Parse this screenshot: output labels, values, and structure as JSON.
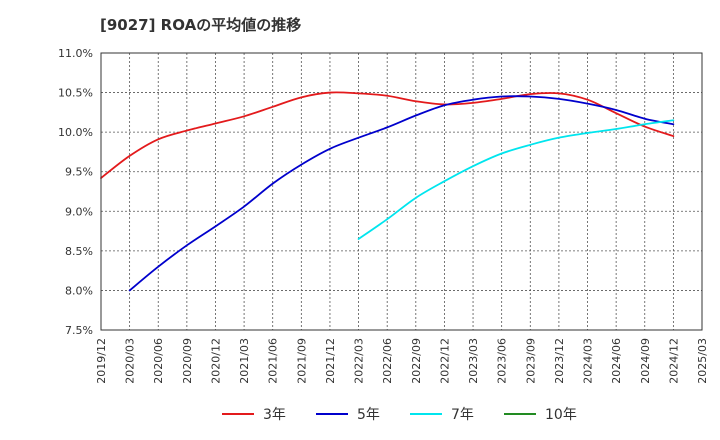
{
  "chart_data": {
    "type": "line",
    "title": "[9027]  ROAの平均値の推移",
    "xlabel": "",
    "ylabel": "",
    "x_ticks": [
      "2019/12",
      "2020/03",
      "2020/06",
      "2020/09",
      "2020/12",
      "2021/03",
      "2021/06",
      "2021/09",
      "2021/12",
      "2022/03",
      "2022/06",
      "2022/09",
      "2022/12",
      "2023/03",
      "2023/06",
      "2023/09",
      "2023/12",
      "2024/03",
      "2024/06",
      "2024/09",
      "2024/12",
      "2025/03"
    ],
    "y_ticks": [
      "7.5%",
      "8.0%",
      "8.5%",
      "9.0%",
      "9.5%",
      "10.0%",
      "10.5%",
      "11.0%"
    ],
    "ylim": [
      7.5,
      11.0
    ],
    "grid": true,
    "legend_position": "bottom",
    "series": [
      {
        "name": "3年",
        "color": "#e31a1c",
        "x": [
          "2019/12",
          "2020/03",
          "2020/06",
          "2020/09",
          "2020/12",
          "2021/03",
          "2021/06",
          "2021/09",
          "2021/12",
          "2022/03",
          "2022/06",
          "2022/09",
          "2022/12",
          "2023/03",
          "2023/06",
          "2023/09",
          "2023/12",
          "2024/03",
          "2024/06",
          "2024/09",
          "2024/12"
        ],
        "values": [
          9.42,
          9.7,
          9.91,
          10.02,
          10.11,
          10.2,
          10.32,
          10.44,
          10.5,
          10.49,
          10.46,
          10.39,
          10.35,
          10.37,
          10.42,
          10.48,
          10.49,
          10.41,
          10.24,
          10.07,
          9.95
        ]
      },
      {
        "name": "5年",
        "color": "#0000cc",
        "x": [
          "2020/03",
          "2020/06",
          "2020/09",
          "2020/12",
          "2021/03",
          "2021/06",
          "2021/09",
          "2021/12",
          "2022/03",
          "2022/06",
          "2022/09",
          "2022/12",
          "2023/03",
          "2023/06",
          "2023/09",
          "2023/12",
          "2024/03",
          "2024/06",
          "2024/09",
          "2024/12"
        ],
        "values": [
          8.0,
          8.3,
          8.57,
          8.81,
          9.06,
          9.35,
          9.59,
          9.79,
          9.93,
          10.06,
          10.21,
          10.34,
          10.41,
          10.45,
          10.45,
          10.42,
          10.36,
          10.28,
          10.17,
          10.1
        ]
      },
      {
        "name": "7年",
        "color": "#00e5ee",
        "x": [
          "2022/03",
          "2022/06",
          "2022/09",
          "2022/12",
          "2023/03",
          "2023/06",
          "2023/09",
          "2023/12",
          "2024/03",
          "2024/06",
          "2024/09",
          "2024/12"
        ],
        "values": [
          8.65,
          8.9,
          9.17,
          9.38,
          9.57,
          9.73,
          9.84,
          9.93,
          9.99,
          10.04,
          10.1,
          10.15
        ]
      },
      {
        "name": "10年",
        "color": "#228b22",
        "x": [],
        "values": []
      }
    ]
  }
}
